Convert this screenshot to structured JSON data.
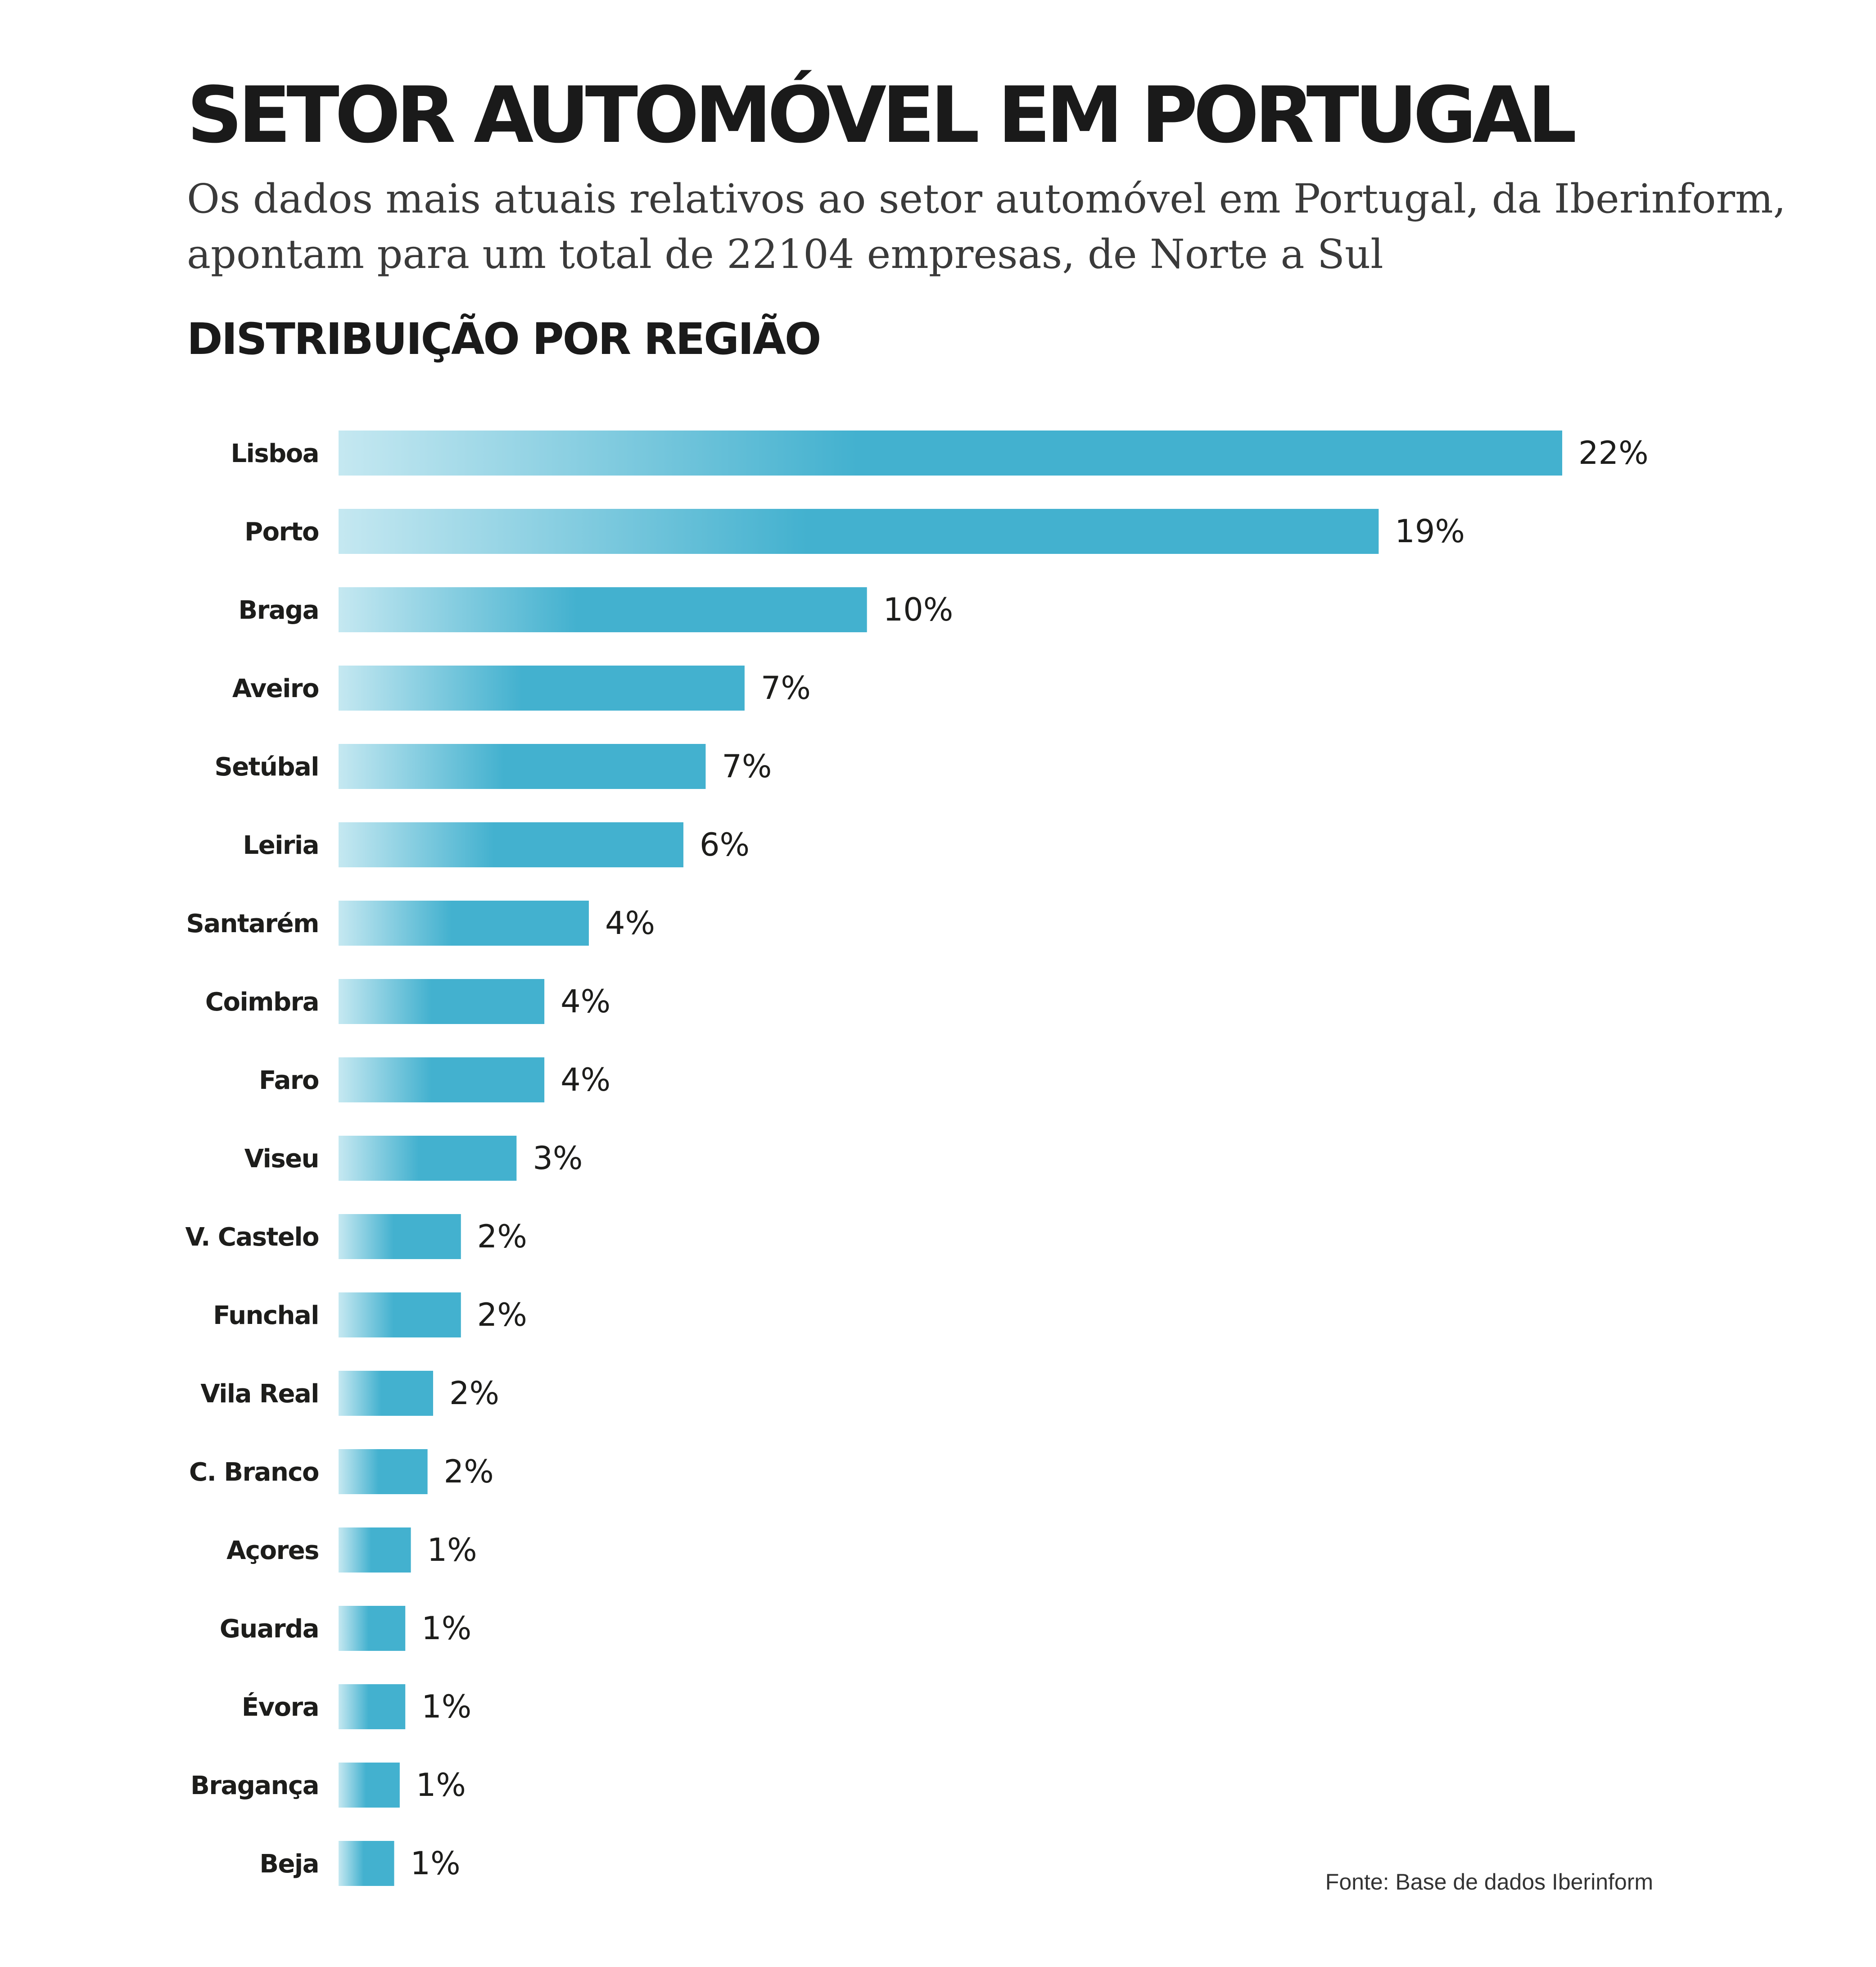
{
  "title": "SETOR AUTOMÓVEL EM PORTUGAL",
  "subtitle": {
    "line1": "Os dados mais atuais relativos ao setor automóvel em Portugal, da Iberinform,",
    "line2": "apontam para um total de 22104 empresas, de Norte a Sul"
  },
  "section_title": "DISTRIBUIÇÃO POR REGIÃO",
  "source": "Fonte: Base de dados Iberinform",
  "colors": {
    "bar": "#43b1cf",
    "bar_light": "#c5e8f1",
    "text": "#1d1d1b"
  },
  "chart_data": {
    "type": "bar",
    "orientation": "horizontal",
    "categories": [
      "Lisboa",
      "Porto",
      "Braga",
      "Aveiro",
      "Setúbal",
      "Leiria",
      "Santarém",
      "Coimbra",
      "Faro",
      "Viseu",
      "V. Castelo",
      "Funchal",
      "Vila Real",
      "C. Branco",
      "Açores",
      "Guarda",
      "Évora",
      "Bragança",
      "Beja"
    ],
    "values": [
      22.0,
      18.7,
      9.5,
      7.3,
      6.6,
      6.2,
      4.5,
      3.7,
      3.7,
      3.2,
      2.2,
      2.2,
      1.7,
      1.6,
      1.3,
      1.2,
      1.2,
      1.1,
      1.0
    ],
    "value_labels": [
      "22%",
      "19%",
      "10%",
      "7%",
      "7%",
      "6%",
      "4%",
      "4%",
      "4%",
      "3%",
      "2%",
      "2%",
      "2%",
      "2%",
      "1%",
      "1%",
      "1%",
      "1%",
      "1%"
    ],
    "unit": "%",
    "xlim": [
      0,
      22
    ],
    "grid": false,
    "legend": "none"
  }
}
